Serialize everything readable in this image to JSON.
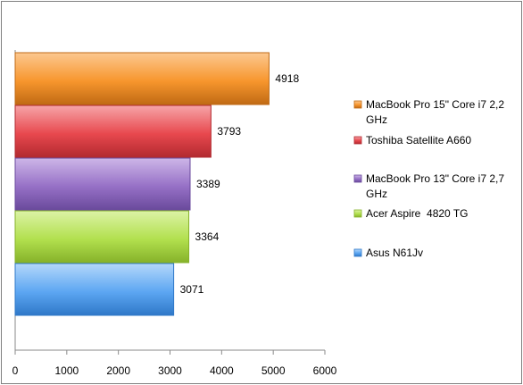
{
  "chart_data": {
    "type": "bar",
    "orientation": "horizontal",
    "title": "",
    "xlabel": "",
    "ylabel": "",
    "xlim": [
      0,
      6000
    ],
    "x_ticks": [
      0,
      1000,
      2000,
      3000,
      4000,
      5000,
      6000
    ],
    "grid": false,
    "legend_position": "right",
    "categories": [
      "MacBook Pro 15\" Core i7 2,2 GHz",
      "Toshiba Satellite A660",
      "MacBook Pro 13\" Core i7 2,7 GHz",
      "Acer Aspire  4820 TG",
      "Asus N61Jv"
    ],
    "legend_lines": [
      [
        "MacBook Pro 15\" Core i7 2,2",
        "GHz"
      ],
      [
        "Toshiba Satellite A660"
      ],
      [
        "MacBook Pro 13\" Core i7 2,7",
        "GHz"
      ],
      [
        "Acer Aspire  4820 TG"
      ],
      [
        "Asus N61Jv"
      ]
    ],
    "values": [
      4918,
      3793,
      3389,
      3364,
      3071
    ],
    "data_labels": [
      "4918",
      "3793",
      "3389",
      "3364",
      "3071"
    ],
    "colors": [
      "#f7962d",
      "#e8484e",
      "#9670c6",
      "#b2e04e",
      "#5ca6f2"
    ],
    "colors_light": [
      "#fcc890",
      "#f6a5a8",
      "#cdb6e8",
      "#dcf3a6",
      "#b4d8fb"
    ],
    "colors_dark": [
      "#c06a14",
      "#b22a30",
      "#6a4a9c",
      "#86b22a",
      "#2f78c8"
    ]
  }
}
